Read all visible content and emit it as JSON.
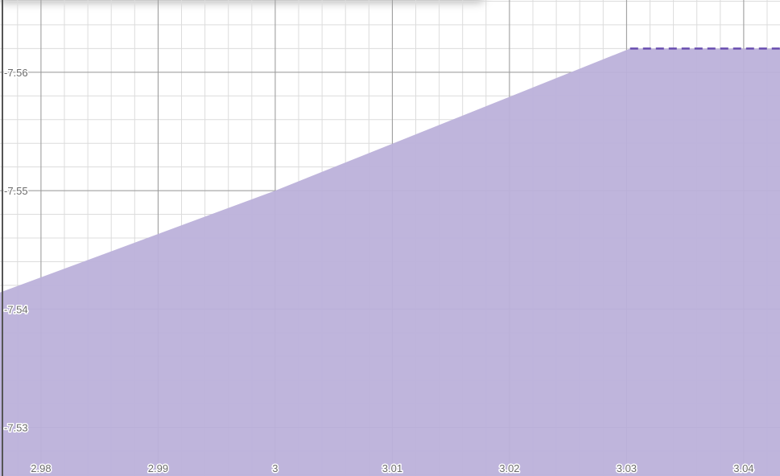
{
  "chart_data": {
    "type": "area",
    "title": "",
    "xlabel": "",
    "ylabel": "",
    "xlim": [
      2.9765,
      3.0431
    ],
    "ylim": [
      -7.5259,
      -7.5661
    ],
    "x_ticks": [
      "2.98",
      "2.99",
      "3",
      "3.01",
      "3.02",
      "3.03",
      "3.04"
    ],
    "x_tick_values": [
      2.98,
      2.99,
      3.0,
      3.01,
      3.02,
      3.03,
      3.04
    ],
    "y_ticks": [
      "-7.53",
      "-7.54",
      "-7.55",
      "-7.56"
    ],
    "y_tick_values": [
      -7.53,
      -7.54,
      -7.55,
      -7.56
    ],
    "grid": true,
    "series": [
      {
        "points": [
          [
            2.9765,
            -7.5414
          ],
          [
            3.0,
            -7.55
          ],
          [
            3.0303,
            -7.562
          ],
          [
            3.0431,
            -7.562
          ]
        ],
        "fill_to": "bottom",
        "fill_color": "#bcb1da",
        "boundary_dashed": {
          "from_x": 3.0303,
          "to_x": 3.0431,
          "y": -7.562,
          "color": "#6a4fb0"
        }
      }
    ],
    "colors": {
      "fill": "#bcb1da",
      "dashed_boundary": "#6a4fb0",
      "major_grid": "#9a9a9a",
      "minor_grid": "#dcdcdc",
      "tick_label": "#6b6b6b"
    }
  }
}
